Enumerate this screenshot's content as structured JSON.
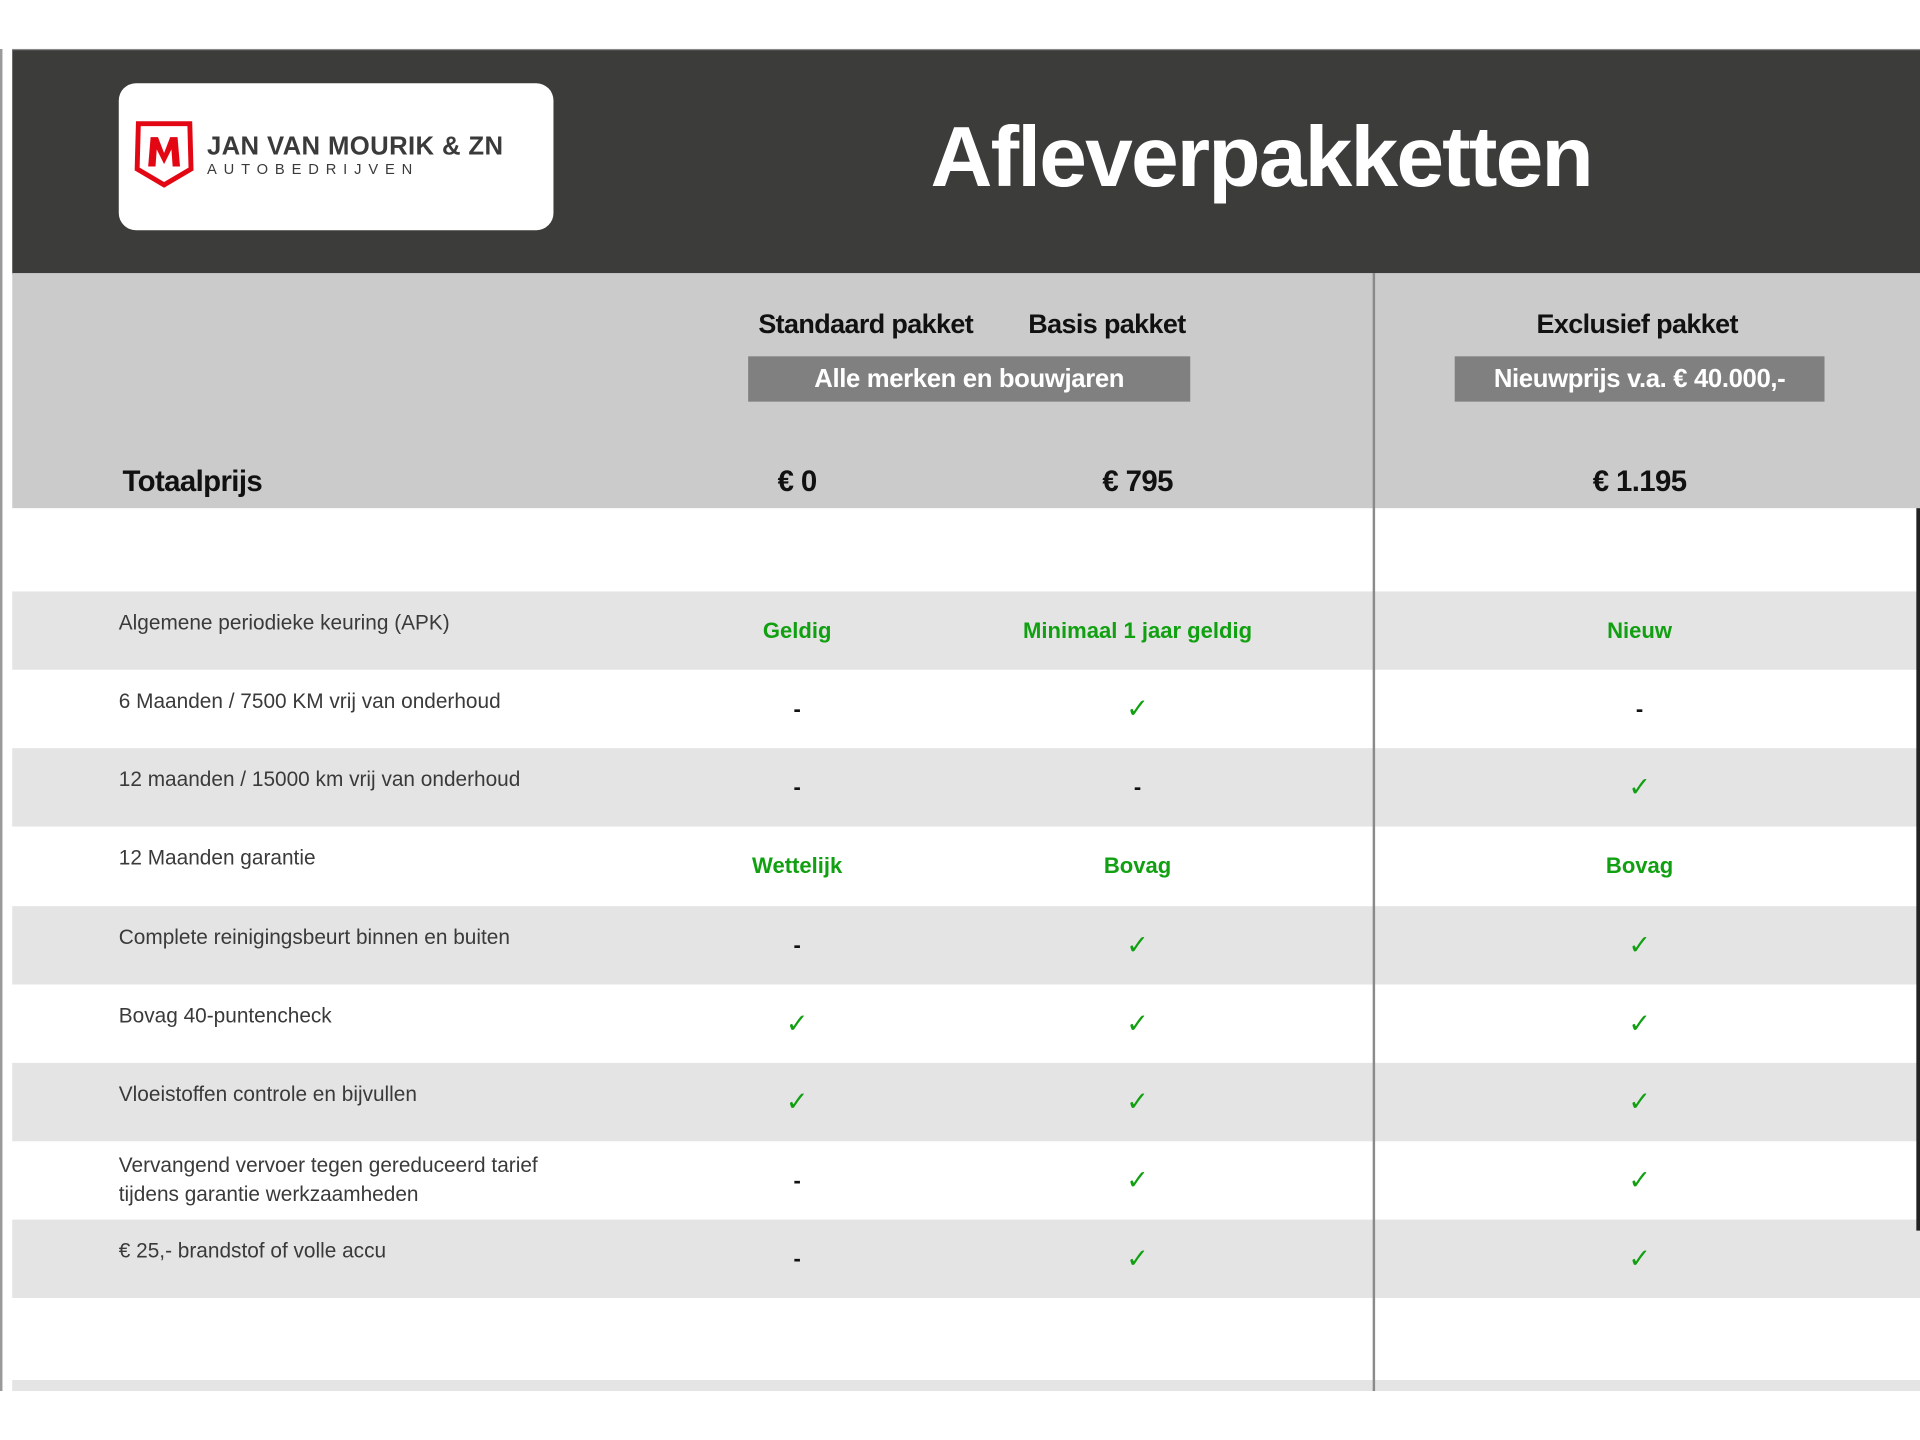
{
  "brand": {
    "name": "JAN VAN MOURIK & ZN",
    "subtitle": "AUTOBEDRIJVEN",
    "logo_letter": "M",
    "logo_color": "#e30613"
  },
  "title": "Afleverpakketten",
  "packages": [
    {
      "name": "Standaard pakket",
      "price": "€ 0"
    },
    {
      "name": "Basis pakket",
      "price": "€ 795"
    },
    {
      "name": "Exclusief pakket",
      "price": "€ 1.195"
    }
  ],
  "group_labels": {
    "standard_basis": "Alle merken en bouwjaren",
    "exclusive": "Nieuwprijs v.a. € 40.000,-"
  },
  "total_label": "Totaalprijs",
  "colors": {
    "accent_green": "#11a011",
    "header_dark": "#3c3c3b",
    "header_gray": "#cbcbcb",
    "row_shade": "#e4e4e4"
  },
  "rows": [
    {
      "label": "Algemene periodieke keuring (APK)",
      "values": [
        "Geldig",
        "Minimaal 1 jaar geldig",
        "Nieuw"
      ]
    },
    {
      "label": "6 Maanden / 7500 KM vrij van onderhoud",
      "values": [
        "-",
        "✓",
        "-"
      ]
    },
    {
      "label": "12 maanden / 15000 km vrij van onderhoud",
      "values": [
        "-",
        "-",
        "✓"
      ]
    },
    {
      "label": "12 Maanden  garantie",
      "values": [
        "Wettelijk",
        "Bovag",
        "Bovag"
      ]
    },
    {
      "label": "Complete reinigingsbeurt binnen en buiten",
      "values": [
        "-",
        "✓",
        "✓"
      ]
    },
    {
      "label": "Bovag 40-puntencheck",
      "values": [
        "✓",
        "✓",
        "✓"
      ]
    },
    {
      "label": "Vloeistoffen controle en bijvullen",
      "values": [
        "✓",
        "✓",
        "✓"
      ]
    },
    {
      "label": "Vervangend vervoer tegen gereduceerd tarief",
      "label_line2": "tijdens garantie werkzaamheden",
      "values": [
        "-",
        "✓",
        "✓"
      ]
    },
    {
      "label": "€ 25,- brandstof of  volle accu",
      "values": [
        "-",
        "✓",
        "✓"
      ]
    }
  ]
}
